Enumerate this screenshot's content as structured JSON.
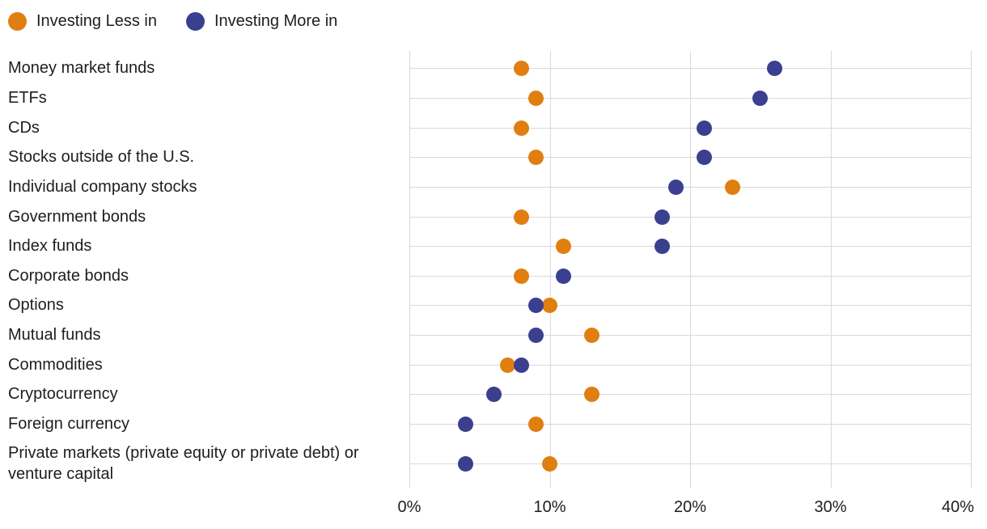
{
  "legend": {
    "items": [
      {
        "label": "Investing Less in",
        "color": "#E07E10"
      },
      {
        "label": "Investing More in",
        "color": "#3B3F8F"
      }
    ]
  },
  "chart_data": {
    "type": "scatter",
    "subtype": "horizontal-dot-plot",
    "title": "",
    "xlabel": "",
    "ylabel": "",
    "categories": [
      "Money market funds",
      "ETFs",
      "CDs",
      "Stocks outside of the U.S.",
      "Individual company stocks",
      "Government bonds",
      "Index funds",
      "Corporate bonds",
      "Options",
      "Mutual funds",
      "Commodities",
      "Cryptocurrency",
      "Foreign currency",
      "Private markets (private equity or private debt) or venture capital"
    ],
    "series": [
      {
        "name": "Investing Less in",
        "color": "#E07E10",
        "values": [
          8,
          9,
          8,
          9,
          23,
          8,
          11,
          8,
          10,
          13,
          7,
          13,
          9,
          10
        ]
      },
      {
        "name": "Investing More in",
        "color": "#3B3F8F",
        "values": [
          26,
          25,
          21,
          21,
          19,
          18,
          18,
          11,
          9,
          9,
          8,
          6,
          4,
          4
        ]
      }
    ],
    "xlim": [
      0,
      40
    ],
    "x_ticks": [
      {
        "value": 0,
        "label": "0%"
      },
      {
        "value": 10,
        "label": "10%"
      },
      {
        "value": 20,
        "label": "20%"
      },
      {
        "value": 30,
        "label": "30%"
      },
      {
        "value": 40,
        "label": "40%"
      }
    ],
    "grid": {
      "horizontal": true,
      "vertical": true,
      "color": "#D9D9D9"
    },
    "legend_position": "top-left"
  }
}
